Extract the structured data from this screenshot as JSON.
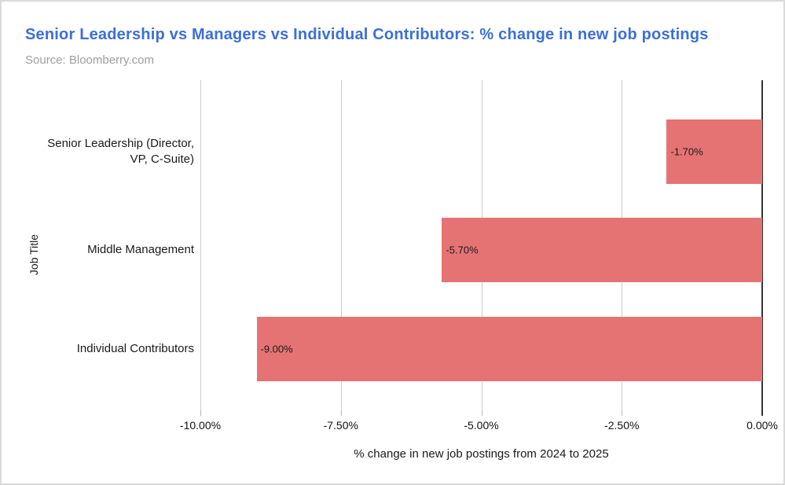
{
  "header": {
    "title": "Senior Leadership vs Managers vs Individual Contributors: % change in new job postings",
    "source": "Source: Bloomberry.com"
  },
  "colors": {
    "title": "#3c6fd7",
    "bar": "#e57373",
    "gridline": "#cccccc",
    "zero_axis": "#333333"
  },
  "chart_data": {
    "type": "bar",
    "orientation": "horizontal",
    "title": "Senior Leadership vs Managers vs Individual Contributors: % change in new job postings",
    "subtitle": "Source: Bloomberry.com",
    "categories": [
      "Senior Leadership (Director,\nVP, C-Suite)",
      "Middle Management",
      "Individual Contributors"
    ],
    "values": [
      -1.7,
      -5.7,
      -9.0
    ],
    "bar_labels": [
      "-1.70%",
      "-5.70%",
      "-9.00%"
    ],
    "xlabel": "% change in new job postings from 2024 to 2025",
    "ylabel": "Job Title",
    "xlim": [
      -10,
      0
    ],
    "x_ticks": [
      -10,
      -7.5,
      -5,
      -2.5,
      0
    ],
    "x_tick_labels": [
      "-10.00%",
      "-7.50%",
      "-5.00%",
      "-2.50%",
      "0.00%"
    ],
    "grid": "vertical-gridlines-on",
    "legend": "none"
  }
}
